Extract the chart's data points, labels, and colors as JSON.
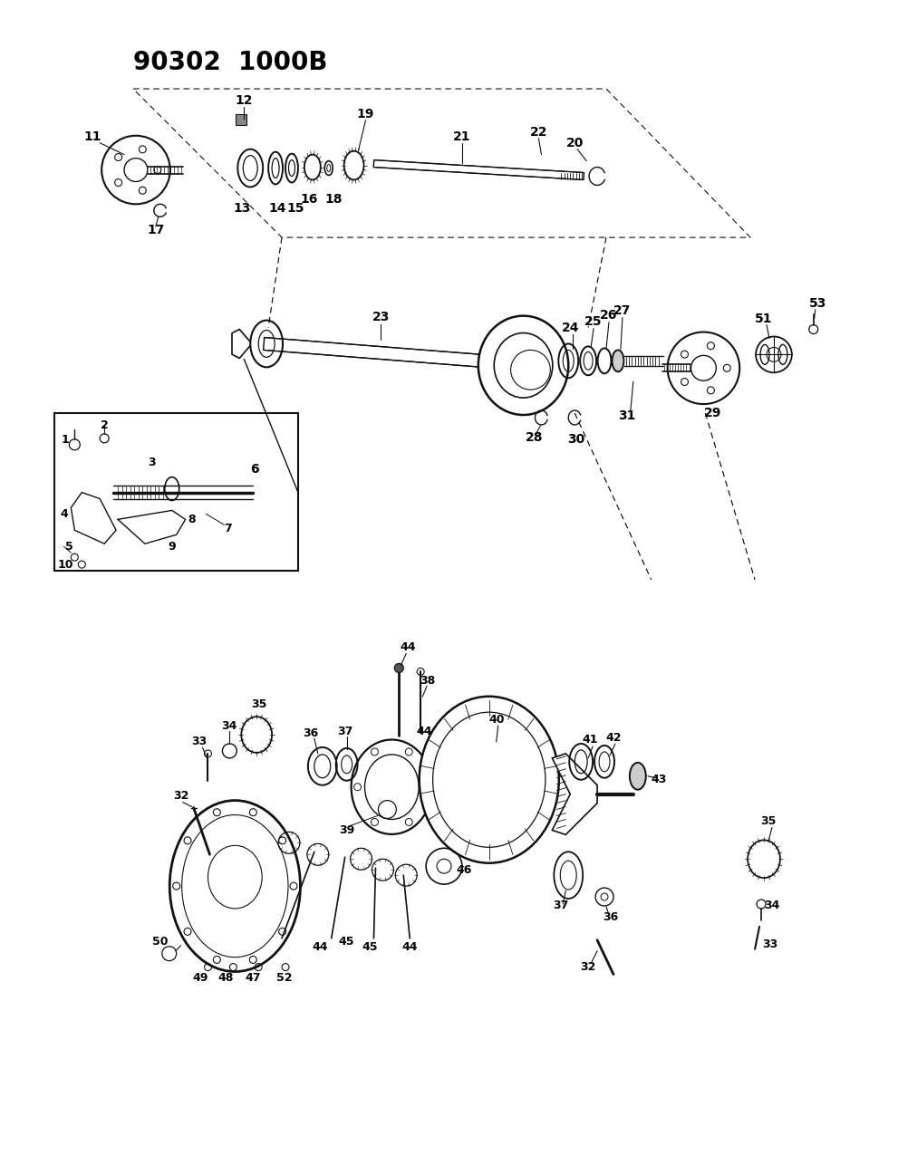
{
  "title": "90302  1000B",
  "bg": "#f0f0f0",
  "lc": "#111111",
  "fig_w": 9.91,
  "fig_h": 12.75,
  "dpi": 100
}
